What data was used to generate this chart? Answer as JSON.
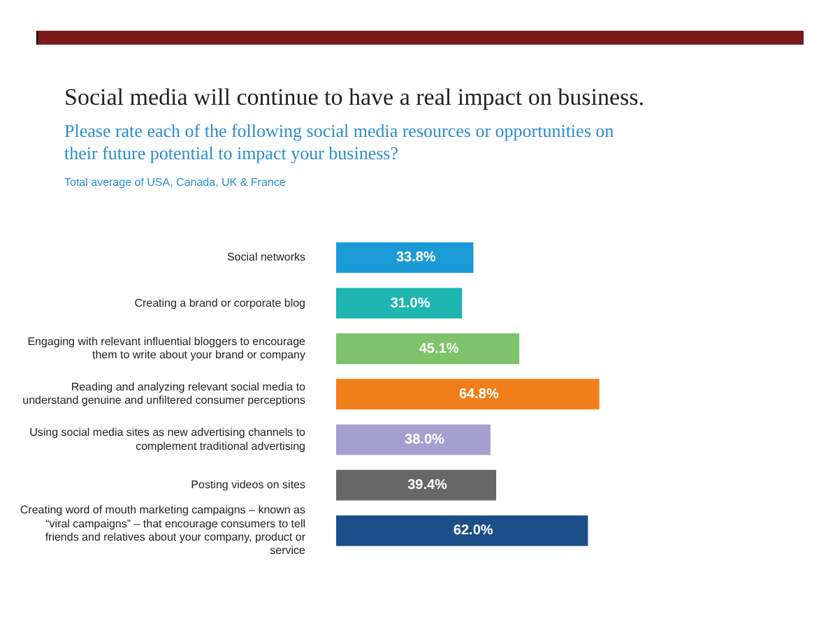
{
  "chart_data": {
    "type": "bar",
    "orientation": "horizontal",
    "title": "Social media will continue to have a real impact on business.",
    "subtitle": "Please rate each of the following social media resources or opportunities on their future potential to impact your business?",
    "annotations": [
      "Total average of USA, Canada, UK & France"
    ],
    "categories": [
      "Social networks",
      "Creating a brand or corporate blog",
      "Engaging with relevant influential bloggers to encourage them to write about your brand or company",
      "Reading and analyzing relevant social media to understand genuine and unfiltered consumer perceptions",
      "Using social media sites as new advertising channels to complement traditional advertising",
      "Posting videos on sites",
      "Creating word of mouth marketing campaigns – known as “viral campaigns” – that encourage consumers to tell friends and relatives about your company, product or service"
    ],
    "values": [
      33.8,
      31.0,
      45.1,
      64.8,
      38.0,
      39.4,
      62.0
    ],
    "value_labels": [
      "33.8%",
      "31.0%",
      "45.1%",
      "64.8%",
      "38.0%",
      "39.4%",
      "62.0%"
    ],
    "colors": [
      "#1a9ad6",
      "#1fb5b0",
      "#7dc36b",
      "#f07f1a",
      "#a49fcf",
      "#676767",
      "#1c4f8a"
    ],
    "tick_labels": "y",
    "legend": false
  }
}
